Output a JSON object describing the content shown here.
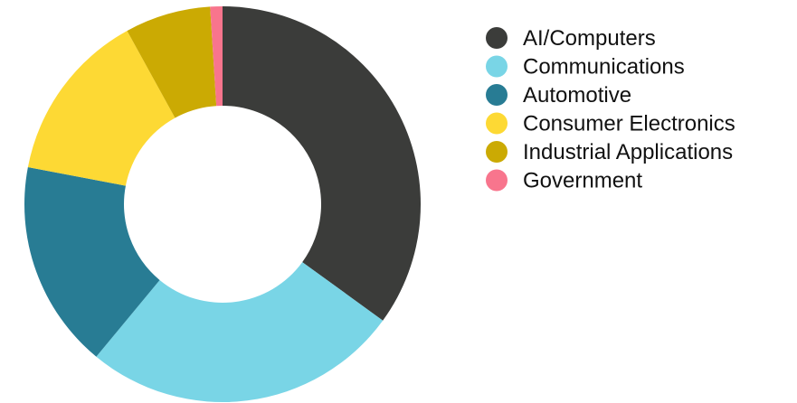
{
  "chart_data": {
    "type": "pie",
    "donut": true,
    "title": "",
    "legend_position": "right",
    "categories": [
      "AI/Computers",
      "Communications",
      "Automotive",
      "Consumer Electronics",
      "Industrial Applications",
      "Government"
    ],
    "values": [
      35,
      26,
      17,
      14,
      7,
      1
    ],
    "colors": [
      "#3b3c3a",
      "#79d5e6",
      "#287c94",
      "#fdd934",
      "#cbaa03",
      "#f8758d"
    ]
  }
}
